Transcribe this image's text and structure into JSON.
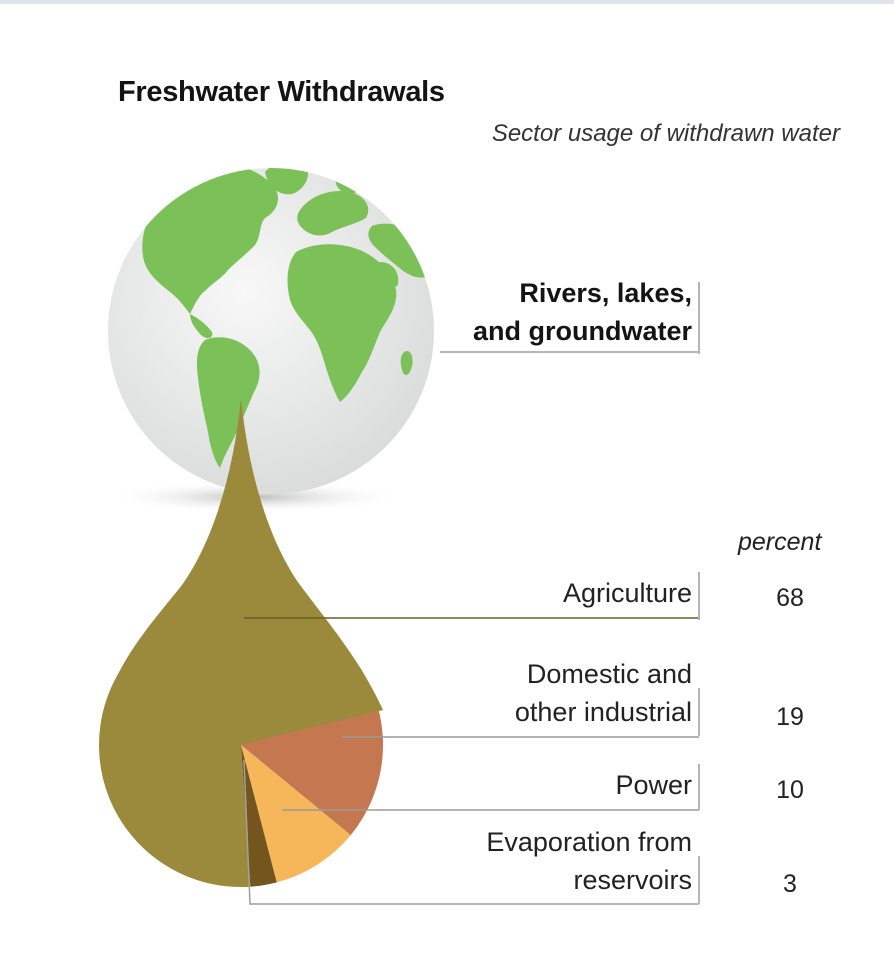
{
  "header": {
    "title": "Freshwater Withdrawals",
    "subtitle": "Sector usage of withdrawn water"
  },
  "source": {
    "line1": "Rivers, lakes,",
    "line2": "and groundwater"
  },
  "unit_label": "percent",
  "colors": {
    "agriculture": "#9c8a3c",
    "domestic": "#c5774f",
    "power": "#f5b759",
    "evaporation": "#74551e",
    "globe_ocean": "#e9ebea",
    "globe_land": "#7cc157",
    "leader_line": "#6e6e6e"
  },
  "chart_data": {
    "type": "pie",
    "title": "Freshwater Withdrawals",
    "subtitle": "Sector usage of withdrawn water",
    "unit": "percent",
    "categories": [
      "Agriculture",
      "Domestic and other industrial",
      "Power",
      "Evaporation from reservoirs"
    ],
    "values": [
      68,
      19,
      10,
      3
    ],
    "labels": [
      {
        "line1": "Agriculture",
        "line2": ""
      },
      {
        "line1": "Domestic and",
        "line2": "other industrial"
      },
      {
        "line1": "Power",
        "line2": ""
      },
      {
        "line1": "Evaporation from",
        "line2": "reservoirs"
      }
    ],
    "value_text": [
      "68",
      "19",
      "10",
      "3"
    ]
  }
}
